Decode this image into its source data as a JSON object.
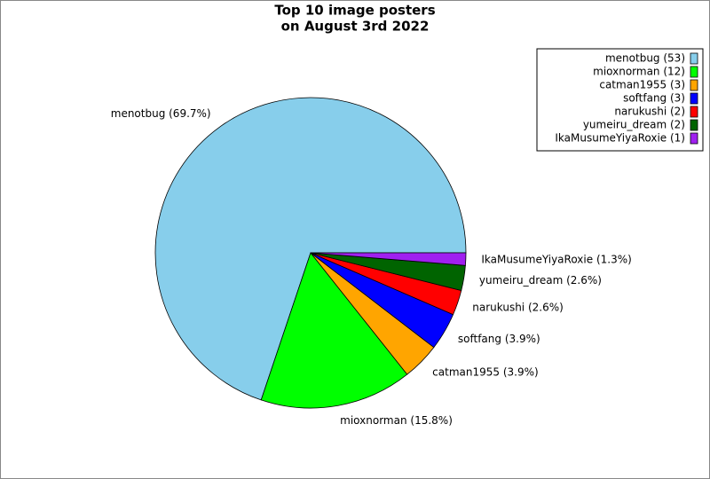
{
  "chart_data": {
    "type": "pie",
    "title": [
      "Top 10 image posters",
      "on August 3rd 2022"
    ],
    "categories": [
      "menotbug (53)",
      "mioxnorman (12)",
      "catman1955 (3)",
      "softfang (3)",
      "narukushi (2)",
      "yumeiru_dream (2)",
      "IkaMusumeYiyaRoxie (1)"
    ],
    "values": [
      69.7,
      15.8,
      3.9,
      3.9,
      2.6,
      2.6,
      1.3
    ],
    "value_labels": [
      "menotbug (69.7%)",
      "mioxnorman (15.8%)",
      "catman1955 (3.9%)",
      "softfang (3.9%)",
      "narukushi (2.6%)",
      "yumeiru_dream (2.6%)",
      "IkaMusumeYiyaRoxie (1.3%)"
    ],
    "colors": [
      "#87ceeb",
      "#00ff00",
      "#ffa500",
      "#0000ff",
      "#ff0000",
      "#006400",
      "#a020f0"
    ],
    "legend": "upper right"
  }
}
